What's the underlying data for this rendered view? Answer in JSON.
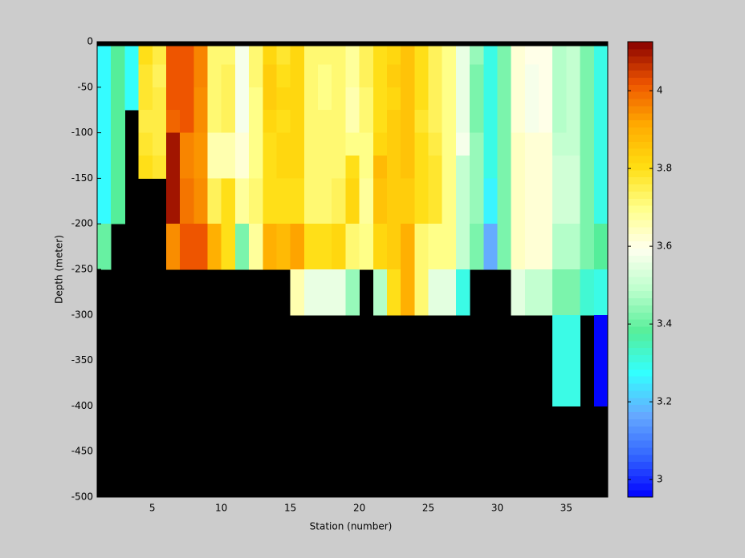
{
  "chart_data": {
    "type": "heatmap",
    "xlabel": "Station (number)",
    "ylabel": "Depth (meter)",
    "x_edges": [
      1,
      2,
      3,
      4,
      5,
      6,
      7,
      8,
      9,
      10,
      11,
      12,
      13,
      14,
      15,
      16,
      17,
      18,
      19,
      20,
      21,
      22,
      23,
      24,
      25,
      26,
      27,
      28,
      29,
      30,
      31,
      32,
      33,
      34,
      35,
      36,
      37,
      38
    ],
    "y_edges": [
      0,
      -5,
      -25,
      -50,
      -75,
      -100,
      -125,
      -150,
      -175,
      -200,
      -250,
      -300,
      -350,
      -400,
      -450,
      -500
    ],
    "values": [
      [
        null,
        null,
        null,
        null,
        null,
        null,
        null,
        null,
        null,
        null,
        null,
        null,
        null,
        null,
        null,
        null,
        null,
        null,
        null,
        null,
        null,
        null,
        null,
        null,
        null,
        null,
        null,
        null,
        null,
        null,
        null,
        null,
        null,
        null,
        null,
        null,
        null
      ],
      [
        3.27,
        3.38,
        3.28,
        3.8,
        3.76,
        4.02,
        4.02,
        3.96,
        3.72,
        3.72,
        3.58,
        3.72,
        3.82,
        3.78,
        3.82,
        3.72,
        3.72,
        3.72,
        3.68,
        3.74,
        3.8,
        3.82,
        3.86,
        3.8,
        3.74,
        3.7,
        3.56,
        3.45,
        3.3,
        3.42,
        3.62,
        3.6,
        3.6,
        3.48,
        3.5,
        3.42,
        3.3
      ],
      [
        3.27,
        3.38,
        3.28,
        3.78,
        3.74,
        4.02,
        4.02,
        3.96,
        3.72,
        3.74,
        3.58,
        3.72,
        3.84,
        3.8,
        3.82,
        3.72,
        3.7,
        3.72,
        3.68,
        3.74,
        3.8,
        3.84,
        3.86,
        3.8,
        3.74,
        3.7,
        3.56,
        3.42,
        3.3,
        3.42,
        3.62,
        3.58,
        3.6,
        3.48,
        3.5,
        3.42,
        3.3
      ],
      [
        3.27,
        3.38,
        3.28,
        3.78,
        3.76,
        4.02,
        4.02,
        3.95,
        3.72,
        3.74,
        3.58,
        3.7,
        3.84,
        3.82,
        3.82,
        3.72,
        3.7,
        3.72,
        3.66,
        3.72,
        3.8,
        3.82,
        3.86,
        3.8,
        3.74,
        3.7,
        3.56,
        3.42,
        3.3,
        3.42,
        3.62,
        3.58,
        3.6,
        3.48,
        3.5,
        3.42,
        3.3
      ],
      [
        3.27,
        3.38,
        null,
        3.76,
        3.76,
        4.0,
        4.02,
        3.95,
        3.72,
        3.74,
        3.58,
        3.7,
        3.82,
        3.8,
        3.82,
        3.72,
        3.72,
        3.72,
        3.66,
        3.72,
        3.8,
        3.84,
        3.86,
        3.78,
        3.74,
        3.7,
        3.56,
        3.42,
        3.3,
        3.42,
        3.62,
        3.58,
        3.6,
        3.48,
        3.5,
        3.42,
        3.3
      ],
      [
        3.27,
        3.38,
        null,
        3.78,
        3.76,
        4.1,
        3.96,
        3.94,
        3.66,
        3.66,
        3.62,
        3.7,
        3.8,
        3.82,
        3.82,
        3.72,
        3.72,
        3.72,
        3.7,
        3.7,
        3.82,
        3.84,
        3.86,
        3.8,
        3.76,
        3.7,
        3.58,
        3.45,
        3.3,
        3.42,
        3.64,
        3.62,
        3.62,
        3.5,
        3.5,
        3.42,
        3.3
      ],
      [
        3.27,
        3.38,
        null,
        3.8,
        3.78,
        4.1,
        3.96,
        3.94,
        3.66,
        3.66,
        3.62,
        3.7,
        3.8,
        3.82,
        3.82,
        3.72,
        3.72,
        3.72,
        3.8,
        3.7,
        3.88,
        3.84,
        3.86,
        3.8,
        3.78,
        3.7,
        3.5,
        3.45,
        3.3,
        3.42,
        3.64,
        3.62,
        3.62,
        3.52,
        3.52,
        3.42,
        3.3
      ],
      [
        3.27,
        3.38,
        null,
        null,
        null,
        4.1,
        3.98,
        3.95,
        3.74,
        3.8,
        3.68,
        3.72,
        3.8,
        3.8,
        3.8,
        3.72,
        3.72,
        3.74,
        3.82,
        3.68,
        3.86,
        3.84,
        3.84,
        3.8,
        3.78,
        3.7,
        3.5,
        3.45,
        3.26,
        3.42,
        3.64,
        3.62,
        3.62,
        3.52,
        3.52,
        3.42,
        3.3
      ],
      [
        3.27,
        3.38,
        null,
        null,
        null,
        4.1,
        3.98,
        3.95,
        3.74,
        3.8,
        3.68,
        3.72,
        3.8,
        3.8,
        3.8,
        3.72,
        3.72,
        3.74,
        3.82,
        3.68,
        3.86,
        3.84,
        3.84,
        3.8,
        3.78,
        3.7,
        3.5,
        3.45,
        3.26,
        3.42,
        3.64,
        3.62,
        3.62,
        3.52,
        3.52,
        3.42,
        3.3
      ],
      [
        3.4,
        null,
        null,
        null,
        null,
        3.95,
        4.02,
        4.02,
        3.9,
        3.8,
        3.42,
        3.68,
        3.9,
        3.88,
        3.92,
        3.8,
        3.8,
        3.82,
        3.72,
        3.7,
        3.82,
        3.84,
        3.9,
        3.72,
        3.7,
        3.7,
        3.5,
        3.42,
        3.17,
        3.42,
        3.64,
        3.62,
        3.62,
        3.48,
        3.48,
        3.42,
        3.38
      ],
      [
        null,
        null,
        null,
        null,
        null,
        null,
        null,
        null,
        null,
        null,
        null,
        null,
        null,
        null,
        3.66,
        3.56,
        3.56,
        3.56,
        3.45,
        null,
        3.48,
        3.8,
        3.9,
        3.72,
        3.55,
        3.55,
        3.3,
        null,
        null,
        null,
        3.55,
        3.5,
        3.5,
        3.42,
        3.42,
        3.32,
        3.3
      ],
      [
        null,
        null,
        null,
        null,
        null,
        null,
        null,
        null,
        null,
        null,
        null,
        null,
        null,
        null,
        null,
        null,
        null,
        null,
        null,
        null,
        null,
        null,
        null,
        null,
        null,
        null,
        null,
        null,
        null,
        null,
        null,
        null,
        null,
        3.3,
        3.3,
        null,
        2.96
      ],
      [
        null,
        null,
        null,
        null,
        null,
        null,
        null,
        null,
        null,
        null,
        null,
        null,
        null,
        null,
        null,
        null,
        null,
        null,
        null,
        null,
        null,
        null,
        null,
        null,
        null,
        null,
        null,
        null,
        null,
        null,
        null,
        null,
        null,
        3.3,
        3.3,
        null,
        2.96
      ],
      [
        null,
        null,
        null,
        null,
        null,
        null,
        null,
        null,
        null,
        null,
        null,
        null,
        null,
        null,
        null,
        null,
        null,
        null,
        null,
        null,
        null,
        null,
        null,
        null,
        null,
        null,
        null,
        null,
        null,
        null,
        null,
        null,
        null,
        null,
        null,
        null,
        null
      ],
      [
        null,
        null,
        null,
        null,
        null,
        null,
        null,
        null,
        null,
        null,
        null,
        null,
        null,
        null,
        null,
        null,
        null,
        null,
        null,
        null,
        null,
        null,
        null,
        null,
        null,
        null,
        null,
        null,
        null,
        null,
        null,
        null,
        null,
        null,
        null,
        null,
        null
      ]
    ],
    "xlim": [
      1,
      38
    ],
    "xticks": [
      5,
      10,
      15,
      20,
      25,
      30,
      35
    ],
    "ylim": [
      -500,
      0
    ],
    "yticks": [
      0,
      -50,
      -100,
      -150,
      -200,
      -250,
      -300,
      -350,
      -400,
      -450,
      -500
    ],
    "clim": [
      2.955,
      4.126
    ],
    "cticks": [
      3,
      3.2,
      3.4,
      3.6,
      3.8,
      4
    ],
    "colormap": [
      "#0000ff",
      "#3366ff",
      "#66aaff",
      "#33ffff",
      "#55ee99",
      "#bbffcc",
      "#ffffee",
      "#ffff88",
      "#ffdd11",
      "#ffaa00",
      "#ee5500",
      "#880000"
    ],
    "missing_color": "#000000"
  }
}
